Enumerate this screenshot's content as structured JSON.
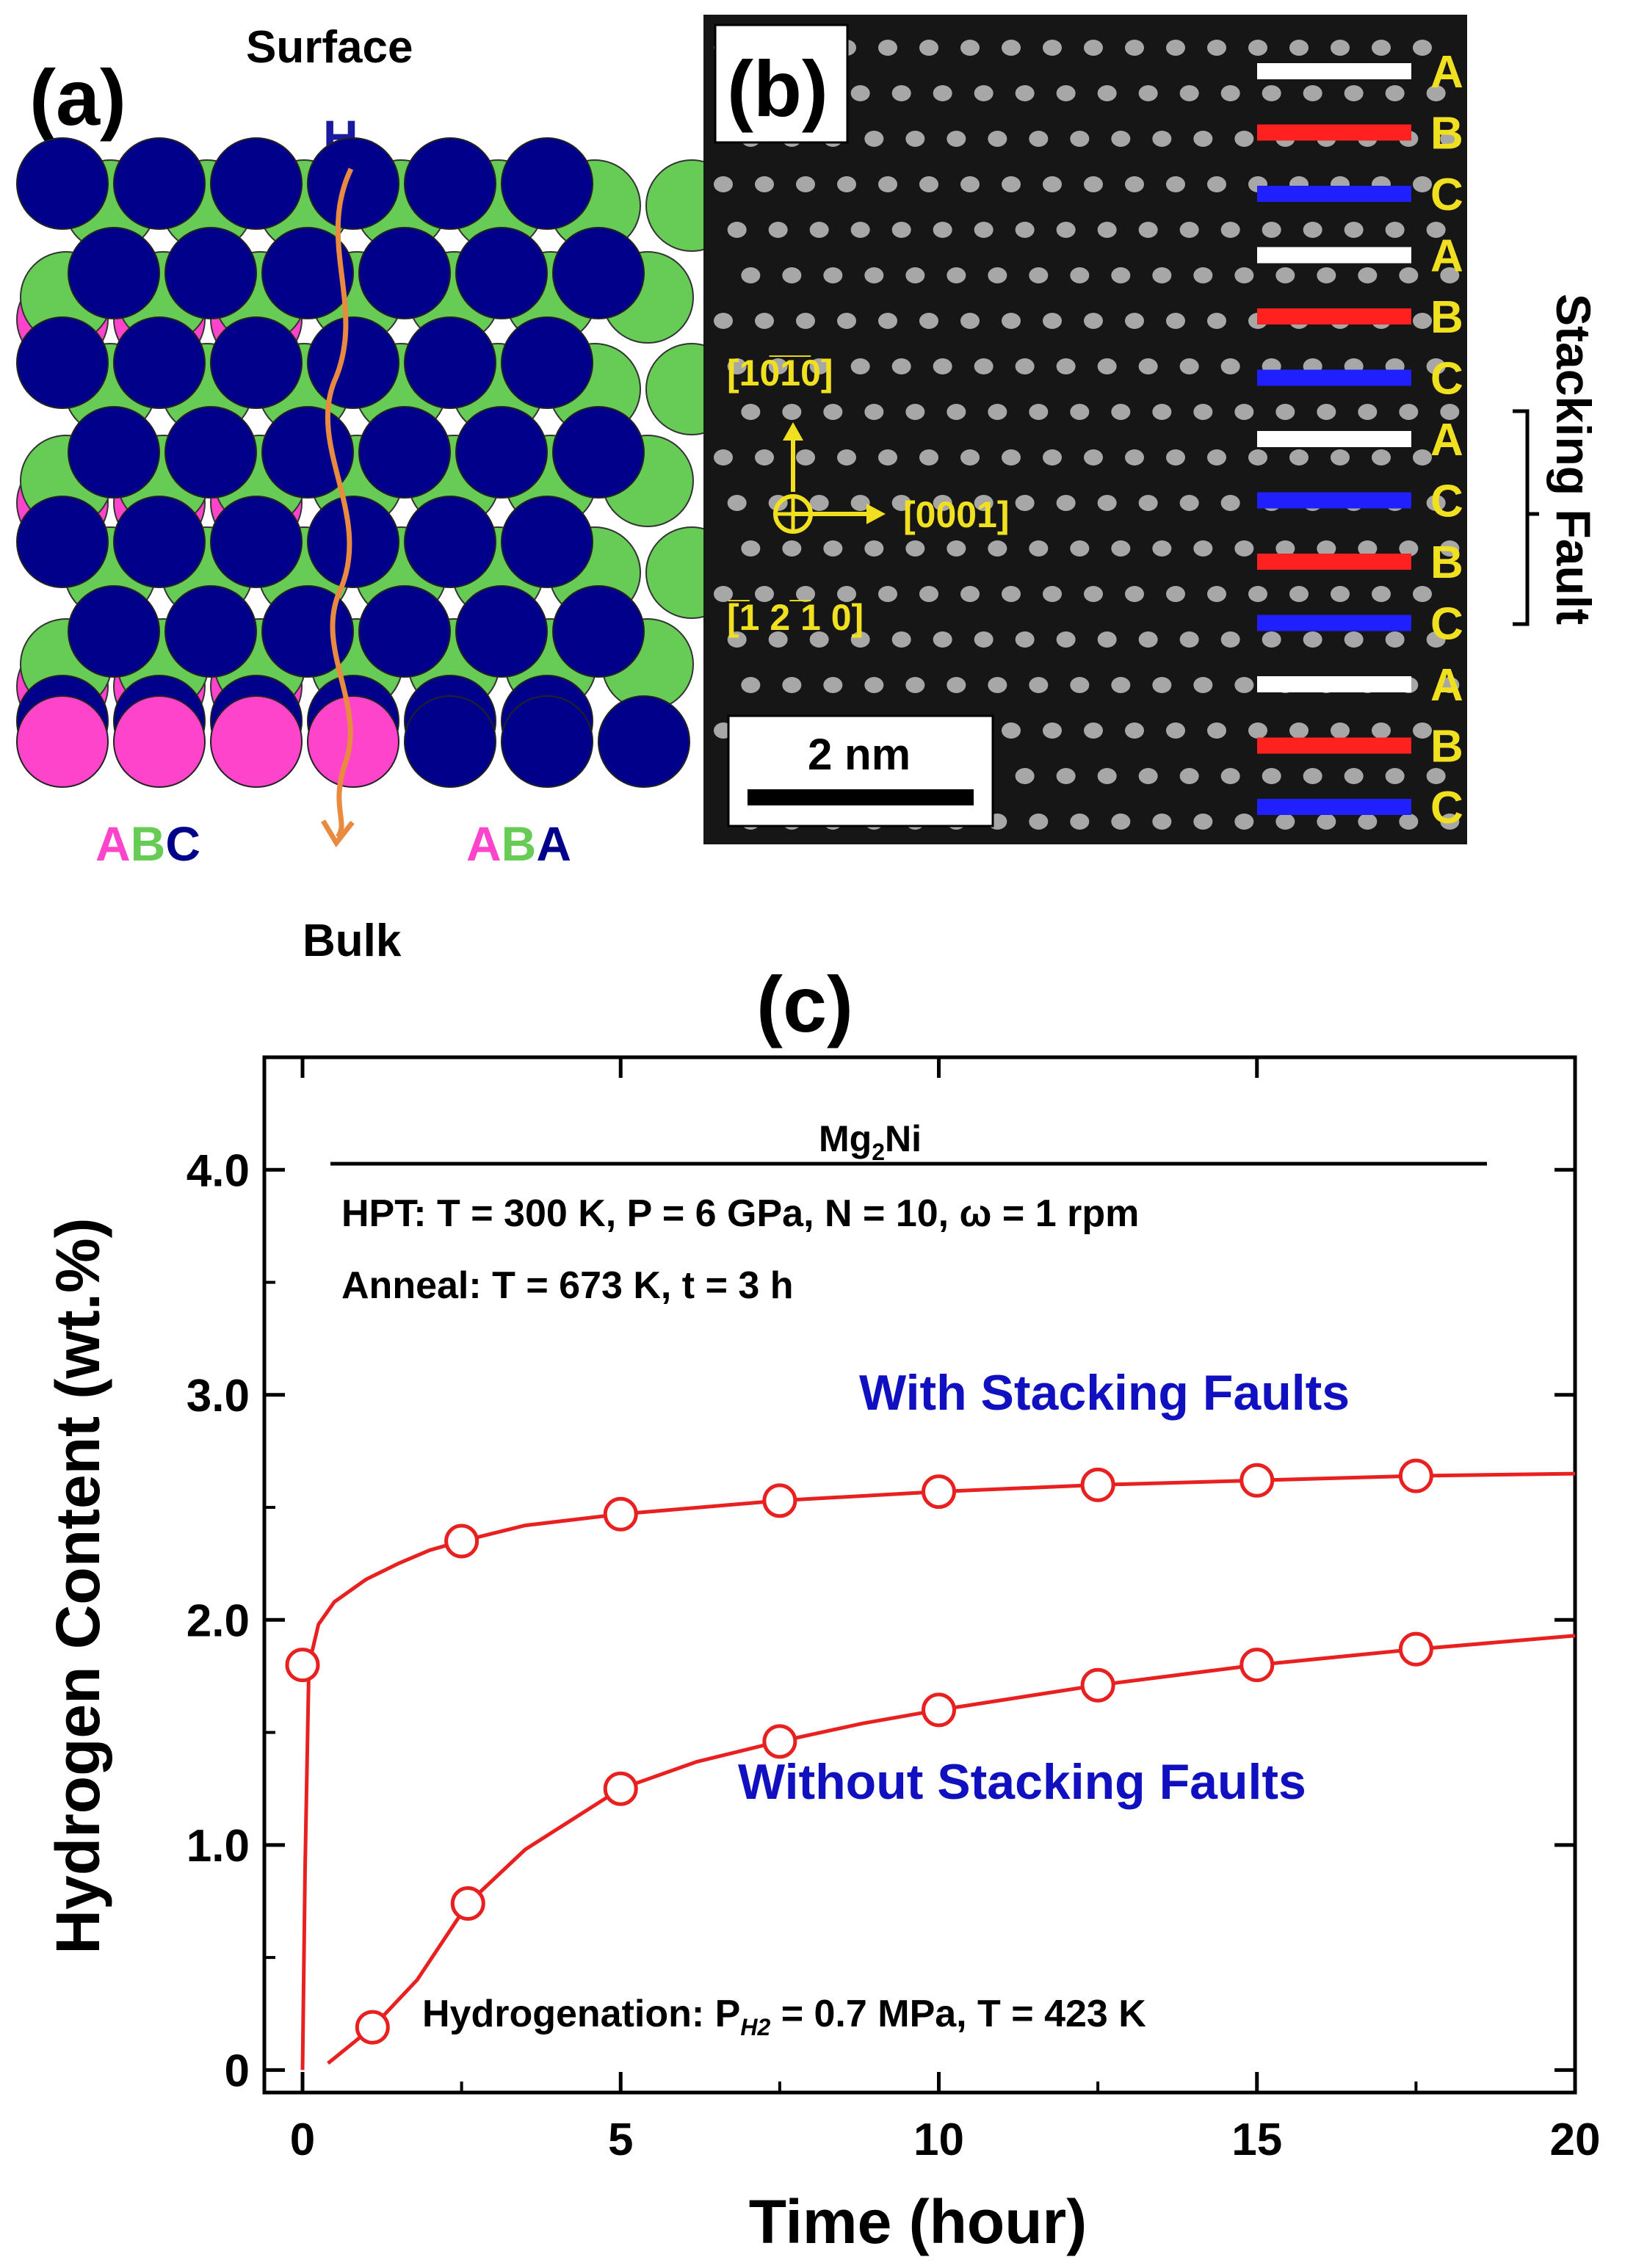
{
  "panel_a": {
    "label": "(a)",
    "top_label": "Surface",
    "bottom_label": "Bulk",
    "h_label": "H",
    "left_stack": [
      "A",
      "B",
      "C"
    ],
    "right_stack": [
      "A",
      "B",
      "A"
    ],
    "colors": {
      "A": "#ff44cc",
      "B": "#66cc55",
      "C": "#00008b",
      "path": "#f0a060"
    }
  },
  "panel_b": {
    "label": "(b)",
    "direction_up": "[10̅1̅0]",
    "direction_right": "[0001]",
    "direction_in": "[̅1 2 ̅1 0]",
    "scale_bar": "2 nm",
    "stacking_fault_label": "Stacking Fault",
    "layers": [
      {
        "letter": "A",
        "color": "#ffffff"
      },
      {
        "letter": "B",
        "color": "#ff2020"
      },
      {
        "letter": "C",
        "color": "#2020ff"
      },
      {
        "letter": "A",
        "color": "#ffffff"
      },
      {
        "letter": "B",
        "color": "#ff2020"
      },
      {
        "letter": "C",
        "color": "#2020ff"
      },
      {
        "letter": "A",
        "color": "#ffffff"
      },
      {
        "letter": "C",
        "color": "#2020ff"
      },
      {
        "letter": "B",
        "color": "#ff2020"
      },
      {
        "letter": "C",
        "color": "#2020ff"
      },
      {
        "letter": "A",
        "color": "#ffffff"
      },
      {
        "letter": "B",
        "color": "#ff2020"
      },
      {
        "letter": "C",
        "color": "#2020ff"
      }
    ]
  },
  "chart_data": {
    "type": "line",
    "panel_label": "(c)",
    "xlabel": "Time (hour)",
    "ylabel": "Hydrogen Content (wt.%)",
    "xlim": [
      -0.6,
      20
    ],
    "ylim": [
      -0.1,
      4.5
    ],
    "xticks": [
      0,
      5,
      10,
      15,
      20
    ],
    "yticks": [
      0,
      1.0,
      2.0,
      3.0,
      4.0
    ],
    "ytick_labels": [
      "0",
      "1.0",
      "2.0",
      "3.0",
      "4.0"
    ],
    "series": [
      {
        "name": "With Stacking Faults",
        "color": "#e82020",
        "x": [
          0,
          2.5,
          5,
          7.5,
          10,
          12.5,
          15,
          17.5
        ],
        "y": [
          1.8,
          2.35,
          2.47,
          2.53,
          2.57,
          2.6,
          2.62,
          2.64
        ],
        "curve_x": [
          0,
          0.04,
          0.1,
          0.25,
          0.5,
          1,
          1.5,
          2,
          2.5,
          3.5,
          5,
          7.5,
          10,
          12.5,
          15,
          17.5,
          20
        ],
        "curve_y": [
          0,
          0.9,
          1.8,
          1.98,
          2.08,
          2.18,
          2.25,
          2.31,
          2.35,
          2.42,
          2.47,
          2.53,
          2.57,
          2.6,
          2.62,
          2.64,
          2.65
        ]
      },
      {
        "name": "Without Stacking Faults",
        "color": "#e82020",
        "x": [
          1.1,
          2.6,
          5,
          7.5,
          10,
          12.5,
          15,
          17.5
        ],
        "y": [
          0.19,
          0.74,
          1.25,
          1.46,
          1.6,
          1.71,
          1.8,
          1.87
        ],
        "curve_x": [
          0.4,
          1.1,
          1.8,
          2.6,
          3.5,
          5,
          6.2,
          7.5,
          8.8,
          10,
          12.5,
          15,
          17.5,
          20
        ],
        "curve_y": [
          0.03,
          0.19,
          0.4,
          0.74,
          0.98,
          1.25,
          1.37,
          1.46,
          1.54,
          1.6,
          1.71,
          1.8,
          1.87,
          1.93
        ]
      }
    ],
    "annotations": {
      "compound_base": "Mg",
      "compound_sub": "2",
      "compound_tail": "Ni",
      "hpt_line": "HPT: T = 300 K, P = 6 GPa, N = 10, ω = 1 rpm",
      "anneal_line": "Anneal: T = 673 K, t = 3 h",
      "hydrogenation_line": "Hydrogenation: P",
      "hydrogenation_sub": "H2",
      "hydrogenation_tail": " = 0.7 MPa, T = 423 K",
      "with_label": "With Stacking Faults",
      "without_label": "Without Stacking Faults",
      "label_color": "#1010c0"
    }
  }
}
